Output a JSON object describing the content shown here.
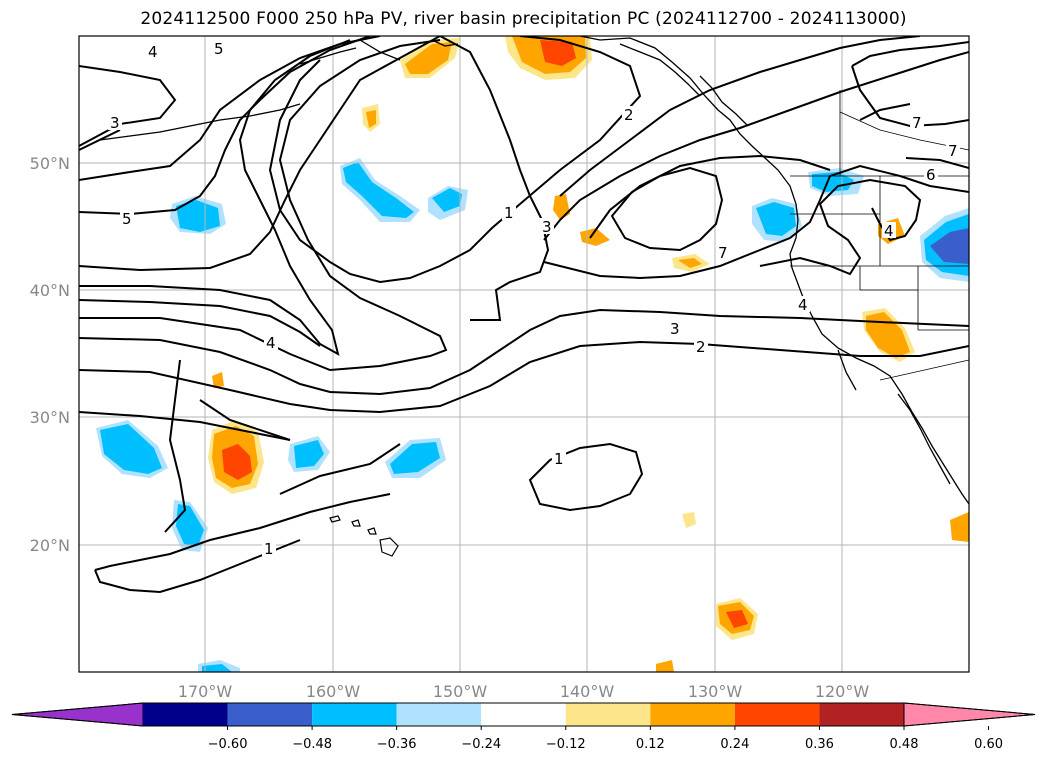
{
  "title": "2024112500 F000 250 hPa PV, river basin precipitation PC (2024112700 - 2024113000)",
  "map": {
    "lon_labels": [
      "170°W",
      "160°W",
      "150°W",
      "140°W",
      "130°W",
      "120°W"
    ],
    "lat_labels": [
      "50°N",
      "40°N",
      "30°N",
      "20°N"
    ],
    "contour_labels": [
      "4",
      "5",
      "3",
      "5",
      "4",
      "1",
      "2",
      "3",
      "1",
      "3",
      "2",
      "4",
      "7",
      "6",
      "7",
      "1",
      "1",
      "7",
      "4"
    ]
  },
  "colorbar": {
    "colors": [
      "#9932cc",
      "#00008b",
      "#3a5fcd",
      "#00bfff",
      "#b0e2ff",
      "#ffffff",
      "#fde68a",
      "#ffa500",
      "#ff4500",
      "#b22222",
      "#ff88aa"
    ],
    "tick_labels": [
      "−0.60",
      "−0.48",
      "−0.36",
      "−0.24",
      "−0.12",
      "0.12",
      "0.24",
      "0.36",
      "0.48",
      "0.60"
    ]
  }
}
